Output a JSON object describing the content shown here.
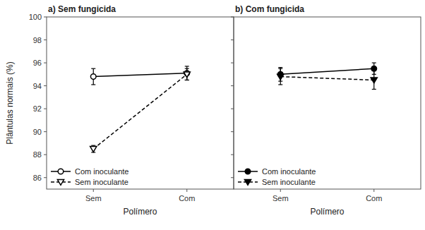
{
  "chart_data": [
    {
      "type": "line",
      "title": "a) Sem fungicida",
      "categories": [
        "Sem",
        "Com"
      ],
      "x_label": "Polímero",
      "y_label": "Plântulas normais (%)",
      "ylim": [
        85,
        100
      ],
      "yticks": [
        86,
        88,
        90,
        92,
        94,
        96,
        98,
        100
      ],
      "grid": false,
      "legend": "lower left",
      "series": [
        {
          "name": "Com inoculante",
          "color": "#000000",
          "marker": "circle-open",
          "line_style": "solid",
          "values": [
            94.8,
            95.1
          ],
          "errors": [
            0.7,
            0.6
          ]
        },
        {
          "name": "Sem inoculante",
          "color": "#000000",
          "marker": "triangle-down-open",
          "line_style": "dashed",
          "values": [
            88.5,
            95.0
          ],
          "errors": [
            0.3,
            0.5
          ]
        }
      ]
    },
    {
      "type": "line",
      "title": "b) Com fungicida",
      "categories": [
        "Sem",
        "Com"
      ],
      "x_label": "Polímero",
      "ylim": [
        85,
        100
      ],
      "yticks": [
        86,
        88,
        90,
        92,
        94,
        96,
        98,
        100
      ],
      "grid": false,
      "legend": "lower left",
      "tick_labels": "x",
      "series": [
        {
          "name": "Com inoculante",
          "color": "#000000",
          "marker": "circle",
          "line_style": "solid",
          "values": [
            95.0,
            95.5
          ],
          "errors": [
            0.6,
            0.5
          ]
        },
        {
          "name": "Sem inoculante",
          "color": "#000000",
          "marker": "triangle-down",
          "line_style": "dashed",
          "values": [
            94.8,
            94.5
          ],
          "errors": [
            0.7,
            0.8
          ]
        }
      ]
    }
  ]
}
